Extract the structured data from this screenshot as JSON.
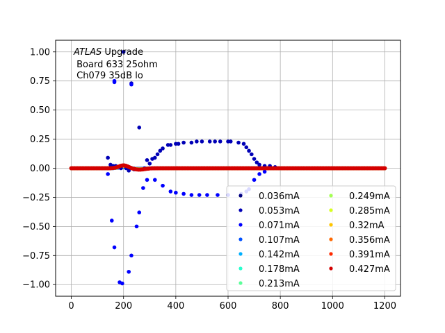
{
  "chart_data": {
    "type": "scatter",
    "annotation": {
      "italic_word": "ATLAS",
      "line1_rest": " Upgrade",
      "line2": " Board 633 25ohm",
      "line3": " Ch079 35dB lo"
    },
    "xlabel": "",
    "ylabel": "",
    "xlim": [
      -60,
      1260
    ],
    "ylim": [
      -1.1,
      1.1
    ],
    "xticks": [
      0,
      200,
      400,
      600,
      800,
      1000,
      1200
    ],
    "xtick_labels": [
      "0",
      "200",
      "400",
      "600",
      "800",
      "1000",
      "1200"
    ],
    "yticks": [
      -1.0,
      -0.75,
      -0.5,
      -0.25,
      0.0,
      0.25,
      0.5,
      0.75,
      1.0
    ],
    "ytick_labels": [
      "−1.00",
      "−0.75",
      "−0.50",
      "−0.25",
      "0.00",
      "0.25",
      "0.50",
      "0.75",
      "1.00"
    ],
    "grid": true,
    "legend": {
      "placement": "lower-right",
      "columns": 2
    },
    "series": [
      {
        "name": "0.036mA",
        "color": "#00007f"
      },
      {
        "name": "0.053mA",
        "color": "#0000b6"
      },
      {
        "name": "0.071mA",
        "color": "#0000ff"
      },
      {
        "name": "0.107mA",
        "color": "#0050ff"
      },
      {
        "name": "0.142mA",
        "color": "#00b0ff"
      },
      {
        "name": "0.178mA",
        "color": "#29ffce"
      },
      {
        "name": "0.213mA",
        "color": "#5cff9a"
      },
      {
        "name": "0.249mA",
        "color": "#a4ff53"
      },
      {
        "name": "0.285mA",
        "color": "#d8ff1f"
      },
      {
        "name": "0.32mA",
        "color": "#ffc500"
      },
      {
        "name": "0.356mA",
        "color": "#ff6800"
      },
      {
        "name": "0.391mA",
        "color": "#ff2a00"
      },
      {
        "name": "0.427mA",
        "color": "#d40000"
      }
    ],
    "highlighted_points": {
      "upper_pulse": [
        [
          140,
          0.09
        ],
        [
          150,
          0.03
        ],
        [
          160,
          0.02
        ],
        [
          170,
          0.02
        ],
        [
          180,
          0.01
        ],
        [
          190,
          0.0
        ],
        [
          200,
          1.0
        ],
        [
          210,
          0.0
        ],
        [
          220,
          -0.02
        ],
        [
          230,
          0.73
        ],
        [
          240,
          -0.01
        ],
        [
          260,
          0.35
        ],
        [
          280,
          0.0
        ],
        [
          290,
          0.07
        ],
        [
          300,
          0.04
        ],
        [
          310,
          0.08
        ],
        [
          320,
          0.09
        ],
        [
          330,
          0.12
        ],
        [
          340,
          0.15
        ],
        [
          350,
          0.17
        ],
        [
          370,
          0.2
        ],
        [
          380,
          0.2
        ],
        [
          400,
          0.21
        ],
        [
          410,
          0.21
        ],
        [
          430,
          0.22
        ],
        [
          460,
          0.22
        ],
        [
          480,
          0.23
        ],
        [
          500,
          0.23
        ],
        [
          530,
          0.23
        ],
        [
          550,
          0.23
        ],
        [
          570,
          0.23
        ],
        [
          600,
          0.23
        ],
        [
          610,
          0.23
        ],
        [
          640,
          0.22
        ],
        [
          660,
          0.21
        ],
        [
          670,
          0.18
        ],
        [
          680,
          0.15
        ],
        [
          690,
          0.12
        ],
        [
          700,
          0.08
        ],
        [
          710,
          0.05
        ],
        [
          720,
          0.03
        ],
        [
          740,
          0.02
        ],
        [
          760,
          0.02
        ],
        [
          780,
          0.01
        ]
      ],
      "lower_pulse": [
        [
          140,
          -0.05
        ],
        [
          155,
          -0.45
        ],
        [
          165,
          -0.68
        ],
        [
          165,
          0.74
        ],
        [
          165,
          0.75
        ],
        [
          185,
          -0.98
        ],
        [
          195,
          -0.99
        ],
        [
          220,
          -0.89
        ],
        [
          230,
          -0.75
        ],
        [
          230,
          0.72
        ],
        [
          250,
          -0.5
        ],
        [
          260,
          -0.38
        ],
        [
          275,
          -0.17
        ],
        [
          290,
          -0.1
        ],
        [
          320,
          -0.1
        ],
        [
          350,
          -0.15
        ],
        [
          380,
          -0.2
        ],
        [
          400,
          -0.21
        ],
        [
          430,
          -0.22
        ],
        [
          460,
          -0.23
        ],
        [
          490,
          -0.23
        ],
        [
          520,
          -0.23
        ],
        [
          560,
          -0.23
        ],
        [
          600,
          -0.23
        ],
        [
          650,
          -0.22
        ],
        [
          670,
          -0.2
        ],
        [
          680,
          -0.18
        ],
        [
          700,
          -0.1
        ],
        [
          720,
          -0.05
        ],
        [
          740,
          -0.03
        ]
      ]
    },
    "baseline_pattern": {
      "x_start": 0,
      "x_end": 1200,
      "x_step": 6,
      "bump_center": 200,
      "bump_height": 0.025,
      "bump_width": 25,
      "secondary_dip_center": 260,
      "secondary_dip_depth": -0.012,
      "secondary_dip_width": 30
    }
  }
}
